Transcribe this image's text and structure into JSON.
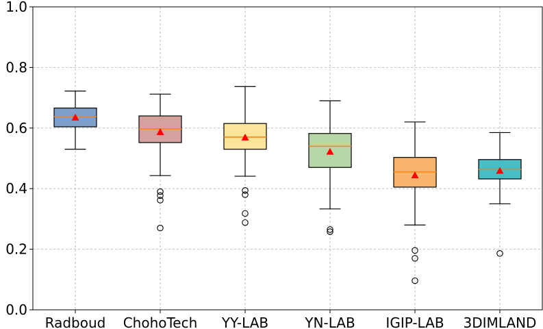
{
  "chart_data": {
    "type": "box",
    "categories": [
      "Radboud",
      "ChohoTech",
      "YY-LAB",
      "YN-LAB",
      "IGIP-LAB",
      "3DIMLAND"
    ],
    "ylim": [
      0.0,
      1.0
    ],
    "yticks": [
      "0.0",
      "0.2",
      "0.4",
      "0.6",
      "0.8",
      "1.0"
    ],
    "grid": true,
    "median_color": "#ff7f0e",
    "mean_marker_color": "#ff0000",
    "boxes": [
      {
        "name": "Radboud",
        "color": "#7e9ecb",
        "whisker_low": 0.53,
        "q1": 0.604,
        "median": 0.638,
        "q3": 0.666,
        "whisker_high": 0.722,
        "mean": 0.635,
        "outliers": []
      },
      {
        "name": "ChohoTech",
        "color": "#d6a09e",
        "whisker_low": 0.443,
        "q1": 0.552,
        "median": 0.597,
        "q3": 0.64,
        "whisker_high": 0.712,
        "mean": 0.587,
        "outliers": [
          0.39,
          0.377,
          0.362,
          0.27
        ]
      },
      {
        "name": "YY-LAB",
        "color": "#fde49b",
        "whisker_low": 0.441,
        "q1": 0.53,
        "median": 0.57,
        "q3": 0.615,
        "whisker_high": 0.737,
        "mean": 0.569,
        "outliers": [
          0.394,
          0.38,
          0.318,
          0.288
        ]
      },
      {
        "name": "YN-LAB",
        "color": "#b6d7a8",
        "whisker_low": 0.333,
        "q1": 0.47,
        "median": 0.54,
        "q3": 0.582,
        "whisker_high": 0.69,
        "mean": 0.522,
        "outliers": [
          0.265,
          0.258
        ]
      },
      {
        "name": "IGIP-LAB",
        "color": "#f9b46c",
        "whisker_low": 0.28,
        "q1": 0.405,
        "median": 0.455,
        "q3": 0.503,
        "whisker_high": 0.62,
        "mean": 0.444,
        "outliers": [
          0.196,
          0.17,
          0.096
        ]
      },
      {
        "name": "3DIMLAND",
        "color": "#45bec4",
        "whisker_low": 0.35,
        "q1": 0.432,
        "median": 0.463,
        "q3": 0.496,
        "whisker_high": 0.585,
        "mean": 0.459,
        "outliers": [
          0.186
        ]
      }
    ]
  }
}
